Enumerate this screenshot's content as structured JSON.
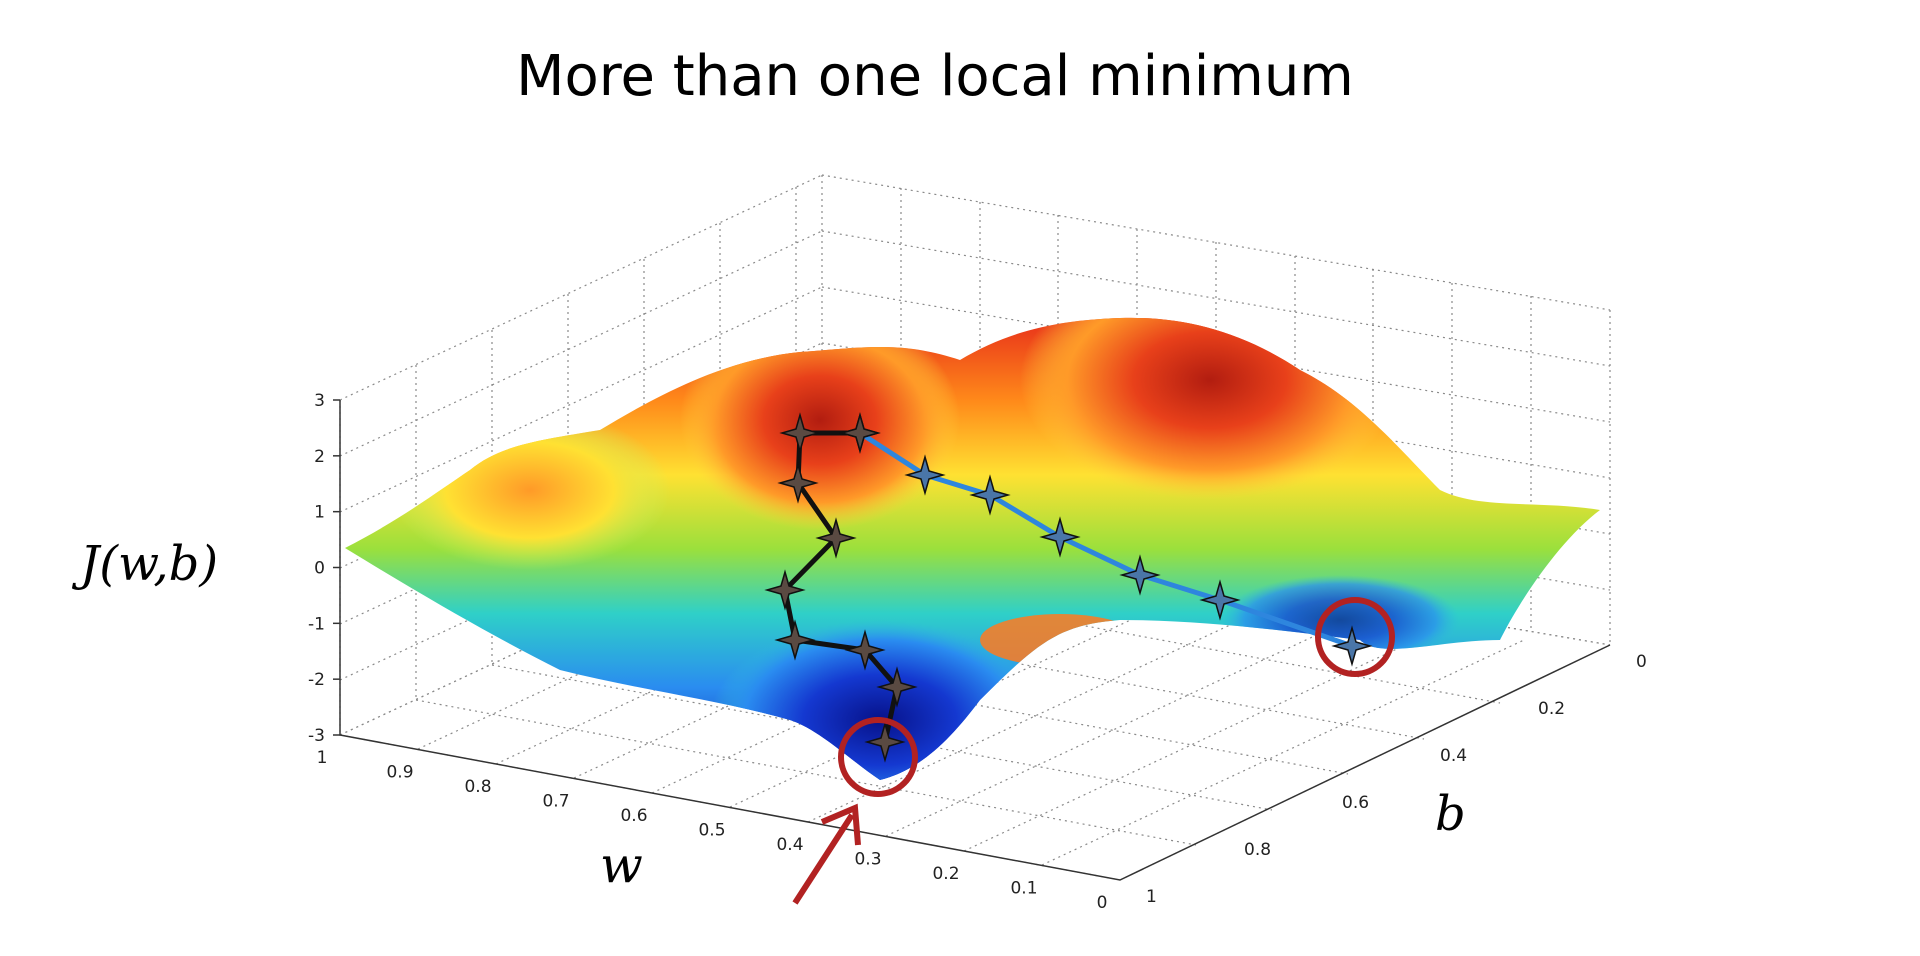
{
  "title": "More than one local minimum",
  "chart_data": {
    "type": "surface",
    "title": "More than one local minimum",
    "zlabel": "J(w,b)",
    "xlabel": "w",
    "ylabel": "b",
    "zlim": [
      -3,
      3
    ],
    "xlim": [
      0,
      1
    ],
    "ylim": [
      0,
      1
    ],
    "z_ticks": [
      "-3",
      "-2",
      "-1",
      "0",
      "1",
      "2",
      "3"
    ],
    "w_ticks": [
      "1",
      "0.9",
      "0.8",
      "0.7",
      "0.6",
      "0.5",
      "0.4",
      "0.3",
      "0.2",
      "0.1",
      "0"
    ],
    "b_ticks": [
      "0",
      "0.2",
      "0.4",
      "0.6",
      "0.8",
      "1"
    ],
    "grid": true,
    "colormap": "jet",
    "series": [
      {
        "path_color": "#111111",
        "points": [
          {
            "w": 0.52,
            "b": 0.28,
            "J": 2.2
          },
          {
            "w": 0.54,
            "b": 0.32,
            "J": 1.4
          },
          {
            "w": 0.48,
            "b": 0.4,
            "J": 0.2
          },
          {
            "w": 0.55,
            "b": 0.42,
            "J": -0.6
          },
          {
            "w": 0.52,
            "b": 0.5,
            "J": -1.2
          },
          {
            "w": 0.43,
            "b": 0.52,
            "J": -1.6
          },
          {
            "w": 0.4,
            "b": 0.58,
            "J": -2.1
          },
          {
            "w": 0.37,
            "b": 0.64,
            "J": -2.7
          },
          {
            "w": 0.36,
            "b": 0.66,
            "J": -2.9
          }
        ]
      },
      {
        "path_color": "#2e86de",
        "points": [
          {
            "w": 0.52,
            "b": 0.28,
            "J": 2.2
          },
          {
            "w": 0.47,
            "b": 0.26,
            "J": 1.7
          },
          {
            "w": 0.41,
            "b": 0.24,
            "J": 1.3
          },
          {
            "w": 0.34,
            "b": 0.21,
            "J": 0.9
          },
          {
            "w": 0.26,
            "b": 0.18,
            "J": 0.4
          },
          {
            "w": 0.17,
            "b": 0.14,
            "J": -0.2
          },
          {
            "w": 0.08,
            "b": 0.1,
            "J": -0.7
          }
        ]
      }
    ],
    "minima_markers": [
      "local minimum (circled, arrow)",
      "local minimum (circled)"
    ],
    "annotation_color": "#b22222"
  }
}
